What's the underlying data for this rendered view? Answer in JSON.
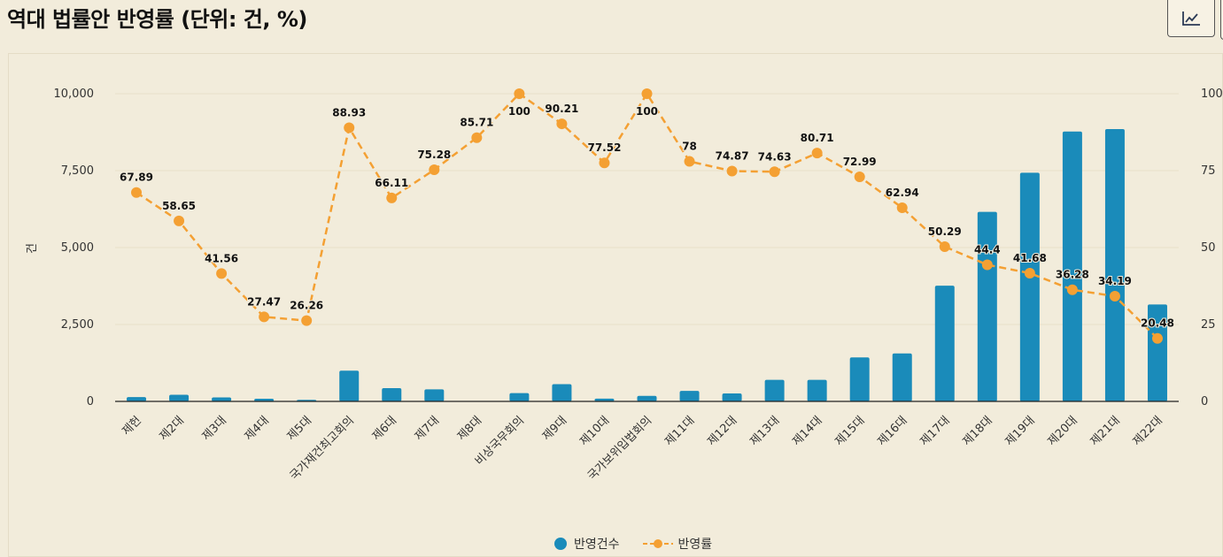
{
  "header": {
    "title": "역대 법률안 반영률 (단위: 건, %)"
  },
  "toolbar": {
    "chart_type_icon": "line-chart-icon"
  },
  "colors": {
    "bar": "#1a8bba",
    "line": "#f4a033",
    "background": "#f2ecdb",
    "grid": "#e8dfc8",
    "axis": "#222222"
  },
  "chart_data": {
    "type": "bar+line",
    "categories": [
      "제헌",
      "제2대",
      "제3대",
      "제4대",
      "제5대",
      "국가재건최고회의",
      "제6대",
      "제7대",
      "제8대",
      "비상국무회의",
      "제9대",
      "제10대",
      "국가보위입법회의",
      "제11대",
      "제12대",
      "제13대",
      "제14대",
      "제15대",
      "제16대",
      "제17대",
      "제18대",
      "제19대",
      "제20대",
      "제21대",
      "제22대"
    ],
    "series": [
      {
        "name": "반영건수",
        "type": "bar",
        "axis": "left",
        "values": [
          140,
          215,
          130,
          85,
          50,
          1000,
          430,
          390,
          0,
          270,
          560,
          90,
          180,
          340,
          260,
          700,
          700,
          1430,
          1560,
          3760,
          6160,
          7430,
          8770,
          8850,
          3150
        ]
      },
      {
        "name": "반영률",
        "type": "line",
        "axis": "right",
        "values": [
          67.89,
          58.65,
          41.56,
          27.47,
          26.26,
          88.93,
          66.11,
          75.28,
          85.71,
          100,
          90.21,
          77.52,
          100,
          78,
          74.87,
          74.63,
          80.71,
          72.99,
          62.94,
          50.29,
          44.4,
          41.68,
          36.28,
          34.19,
          20.48
        ],
        "labels": [
          "67.89",
          "58.65",
          "41.56",
          "27.47",
          "26.26",
          "88.93",
          "66.11",
          "75.28",
          "85.71",
          "100",
          "90.21",
          "77.52",
          "100",
          "78",
          "74.87",
          "74.63",
          "80.71",
          "72.99",
          "62.94",
          "50.29",
          "44.4",
          "41.68",
          "36.28",
          "34.19",
          "20.48"
        ]
      }
    ],
    "y_left": {
      "label": "건",
      "min": 0,
      "max": 10000,
      "ticks": [
        0,
        2500,
        5000,
        7500,
        10000
      ],
      "tick_labels": [
        "0",
        "2,500",
        "5,000",
        "7,500",
        "10,000"
      ]
    },
    "y_right": {
      "min": 0,
      "max": 100,
      "ticks": [
        0,
        25,
        50,
        75,
        100
      ],
      "tick_labels": [
        "0",
        "25",
        "50",
        "75",
        "100"
      ]
    },
    "legend": {
      "position": "bottom-center",
      "items": [
        "반영건수",
        "반영률"
      ]
    }
  }
}
